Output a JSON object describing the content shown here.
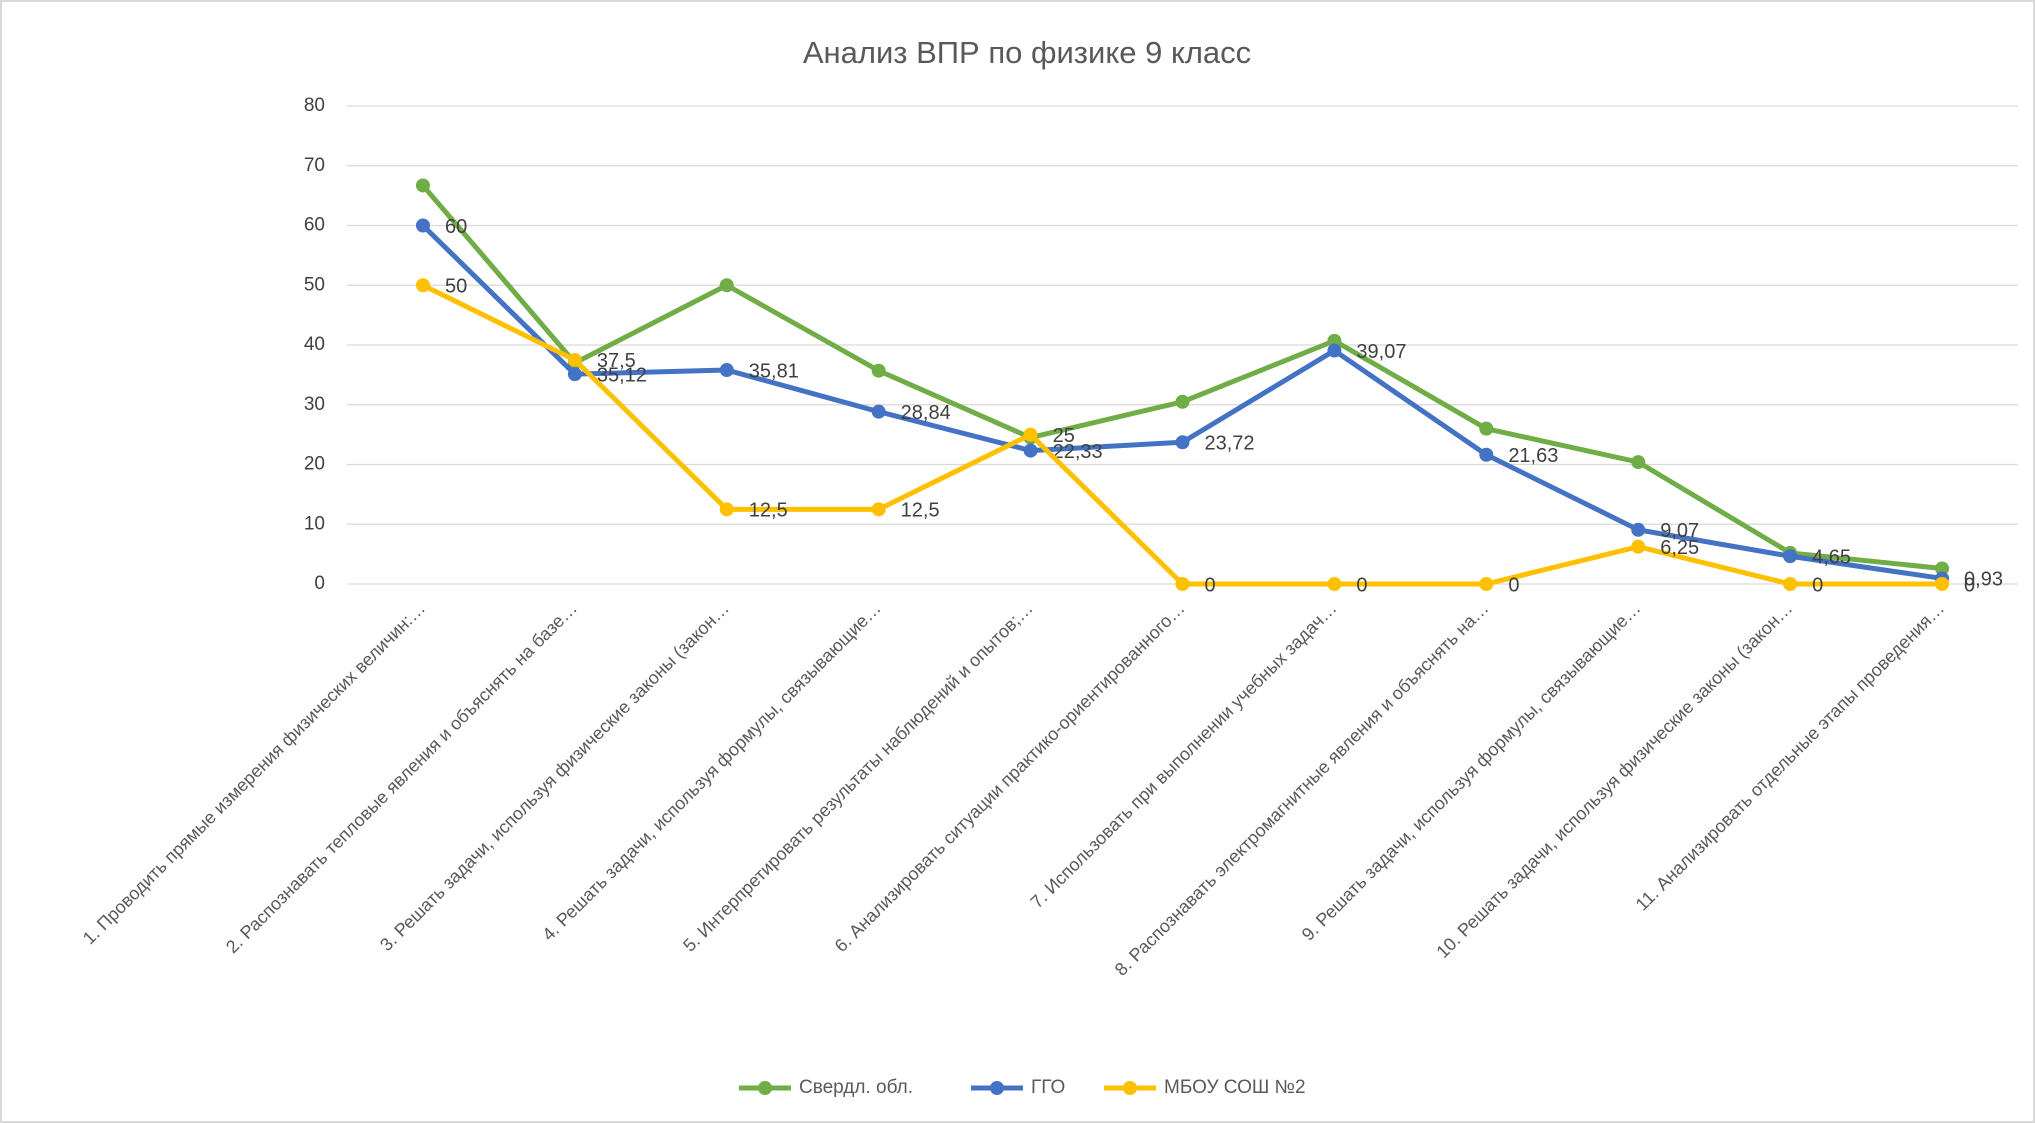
{
  "chart_data": {
    "type": "line",
    "title": "Анализ ВПР по физике 9 класс",
    "categories": [
      "1. Проводить прямые измерения физических величин:…",
      "2. Распознавать тепловые явления и объяснять на базе…",
      "3. Решать задачи, используя физические законы (закон…",
      "4. Решать задачи, используя формулы, связывающие…",
      "5. Интерпретировать результаты наблюдений и опытов;…",
      "6. Анализировать ситуации практико-ориентированного…",
      "7. Использовать при выполнении учебных задач…",
      "8. Распознавать электромагнитные явления и объяснять на…",
      "9. Решать задачи, используя формулы, связывающие…",
      "10. Решать задачи, используя физические законы (закон…",
      "11. Анализировать отдельные этапы проведения…"
    ],
    "series": [
      {
        "name": "Свердл. обл.",
        "color": "#70ad47",
        "values": [
          66.7,
          37,
          50,
          35.7,
          24.5,
          30.5,
          40.7,
          26,
          20.4,
          5.2,
          2.6
        ]
      },
      {
        "name": "ГГО",
        "color": "#4472c4",
        "values": [
          60,
          35.12,
          35.81,
          28.84,
          22.33,
          23.72,
          39.07,
          21.63,
          9.07,
          4.65,
          0.93
        ],
        "value_labels": [
          "60",
          "35,12",
          "35,81",
          "28,84",
          "22,33",
          "23,72",
          "39,07",
          "21,63",
          "9,07",
          "4,65",
          "0,93"
        ]
      },
      {
        "name": "МБОУ СОШ №2",
        "color": "#ffc000",
        "values": [
          50,
          37.5,
          12.5,
          12.5,
          25,
          0,
          0,
          0,
          6.25,
          0,
          0
        ],
        "value_labels": [
          "50",
          "37,5",
          "12,5",
          "12,5",
          "25",
          "0",
          "0",
          "0",
          "6,25",
          "0",
          "0"
        ]
      }
    ],
    "ylim": [
      0,
      80
    ],
    "yticks": [
      0,
      10,
      20,
      30,
      40,
      50,
      60,
      70,
      80
    ],
    "grid": true,
    "legend": "bottom"
  }
}
